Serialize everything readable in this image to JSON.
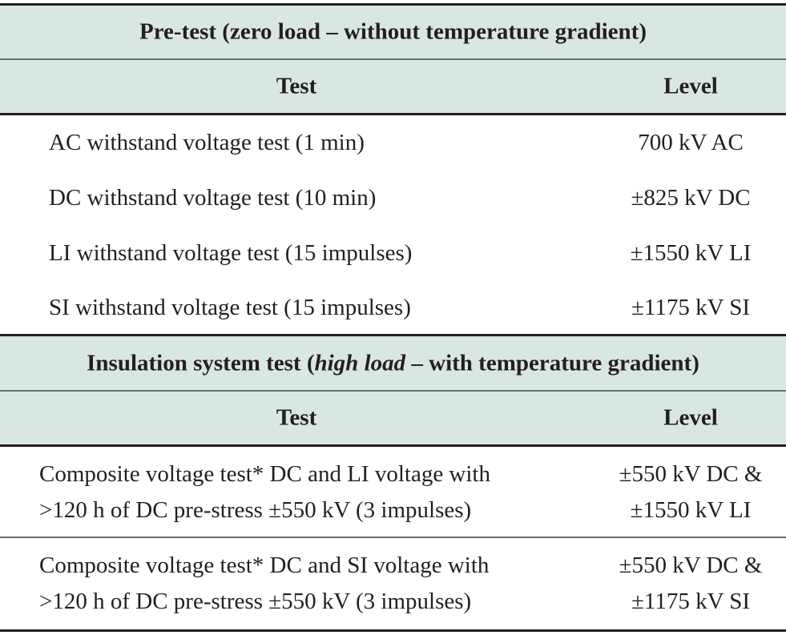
{
  "sections": [
    {
      "title": "Pre-test (zero load – without temperature gradient)",
      "col_test": "Test",
      "col_level": "Level",
      "rows": [
        {
          "test": "AC withstand voltage test (1 min)",
          "level": "700 kV AC"
        },
        {
          "test": "DC withstand voltage test (10 min)",
          "level": "±825 kV DC"
        },
        {
          "test": "LI withstand voltage test (15 impulses)",
          "level": "±1550 kV LI"
        },
        {
          "test": "SI withstand voltage test (15 impulses)",
          "level": "±1175 kV SI"
        }
      ]
    },
    {
      "title_pre": "Insulation system test (",
      "title_italic": "high load",
      "title_post": " – with temperature gradient)",
      "col_test": "Test",
      "col_level": "Level",
      "rows": [
        {
          "test_line1": "Composite voltage test* DC and LI voltage with",
          "test_line2": ">120 h of DC pre-stress ±550 kV (3 impulses)",
          "level_line1": "±550 kV DC &",
          "level_line2": "±1550 kV LI"
        },
        {
          "test_line1": "Composite voltage test* DC and SI voltage with",
          "test_line2": ">120 h of DC pre-stress ±550 kV (3 impulses)",
          "level_line1": "±550 kV DC &",
          "level_line2": "±1175 kV SI"
        }
      ]
    }
  ]
}
